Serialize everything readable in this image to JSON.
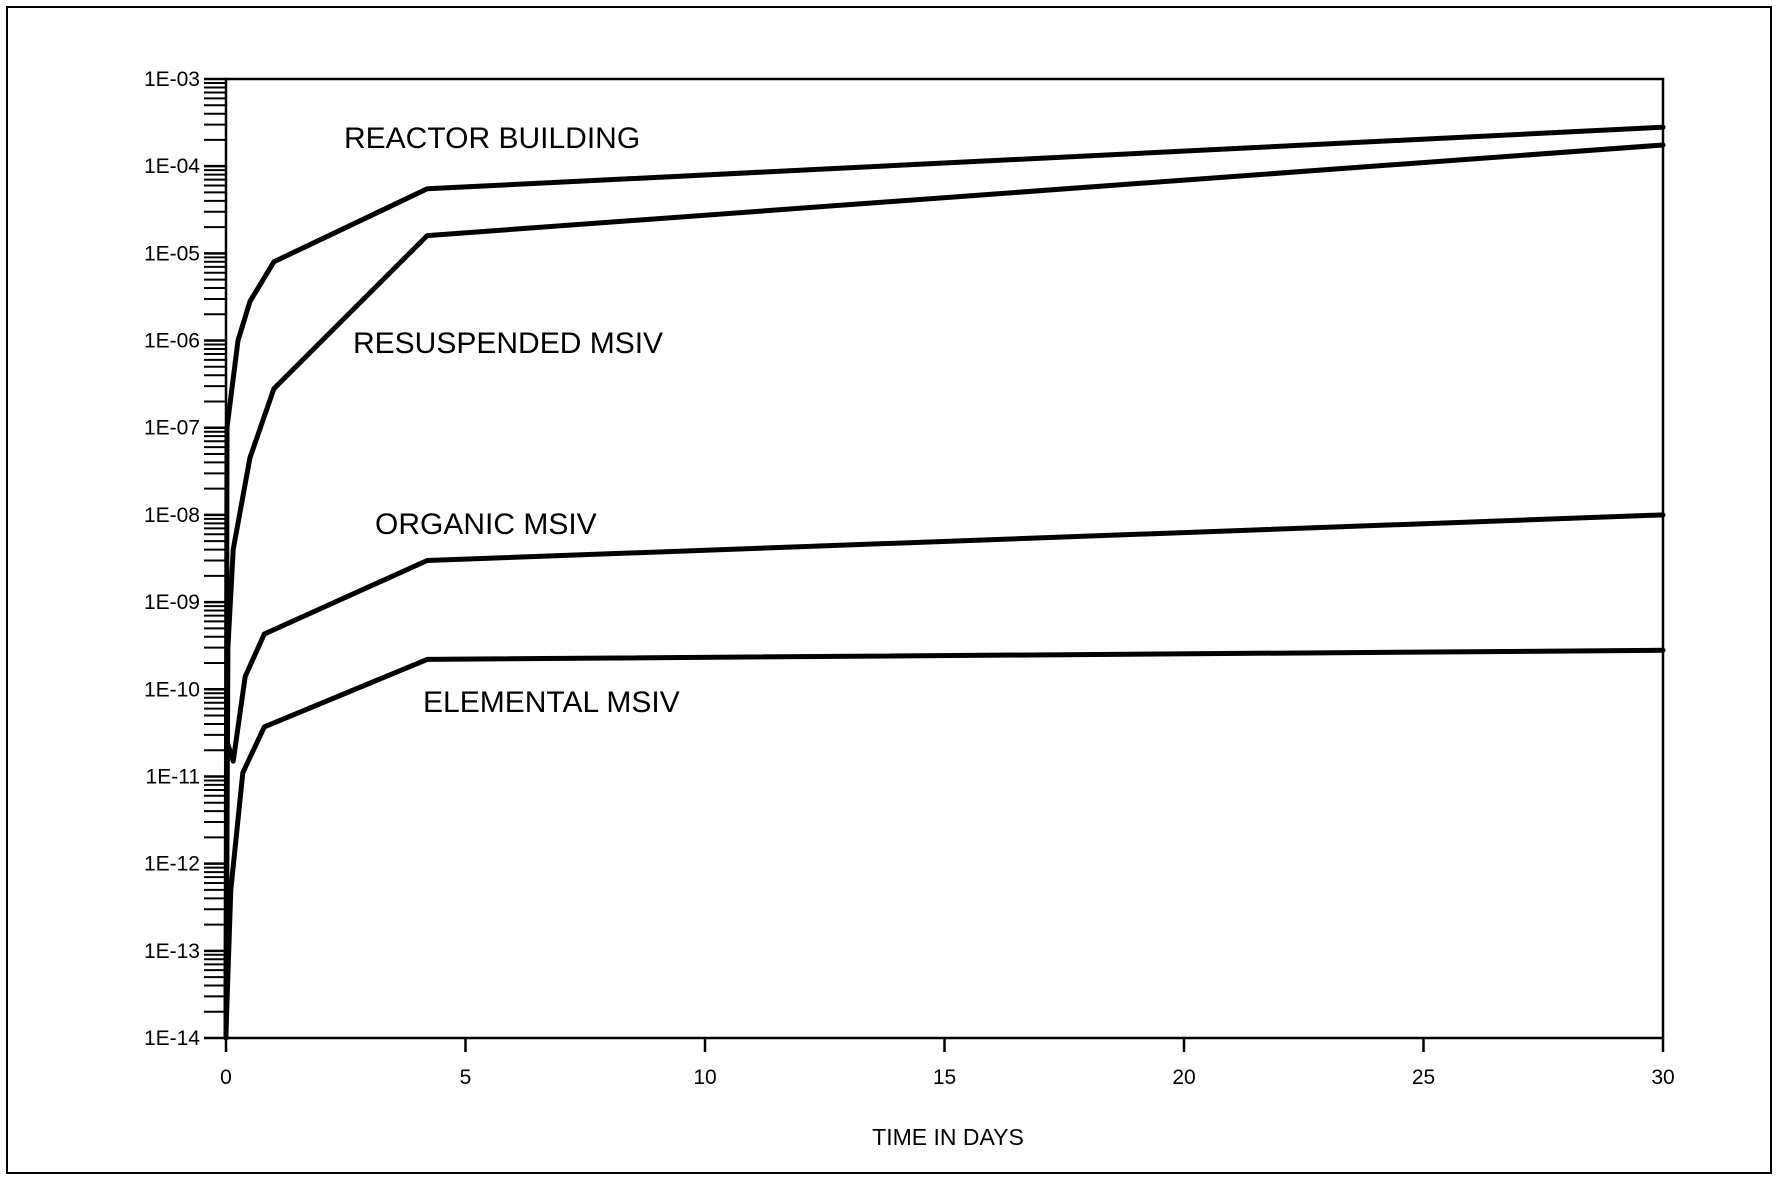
{
  "chart_data": {
    "type": "line",
    "title": "",
    "xlabel": "TIME IN DAYS",
    "ylabel": "",
    "xlim": [
      0,
      30
    ],
    "ylim": [
      1e-14,
      0.001
    ],
    "y_scale": "log",
    "grid": false,
    "x_ticks": [
      0,
      5,
      10,
      15,
      20,
      25,
      30
    ],
    "x_tick_labels": [
      "0",
      "5",
      "10",
      "15",
      "20",
      "25",
      "30"
    ],
    "y_ticks": [
      0.001,
      0.0001,
      1e-05,
      1e-06,
      1e-07,
      1e-08,
      1e-09,
      1e-10,
      1e-11,
      1e-12,
      1e-13,
      1e-14
    ],
    "y_tick_labels": [
      "1E-03",
      "1E-04",
      "1E-05",
      "1E-06",
      "1E-07",
      "1E-08",
      "1E-09",
      "1E-10",
      "1E-11",
      "1E-12",
      "1E-13",
      "1E-14"
    ],
    "series": [
      {
        "name": "REACTOR BUILDING",
        "color": "#000000",
        "x": [
          0,
          0.02,
          0.25,
          0.5,
          1.0,
          4.2,
          30
        ],
        "y": [
          1e-14,
          1e-07,
          1e-06,
          2.8e-06,
          8e-06,
          5.5e-05,
          0.00028
        ]
      },
      {
        "name": "RESUSPENDED MSIV",
        "color": "#000000",
        "x": [
          0,
          0.04,
          0.15,
          0.5,
          1.0,
          4.2,
          30
        ],
        "y": [
          1e-14,
          3e-10,
          4e-09,
          4.5e-08,
          2.8e-07,
          1.6e-05,
          0.000175
        ]
      },
      {
        "name": "ORGANIC MSIV",
        "color": "#000000",
        "x": [
          0,
          0.02,
          0.15,
          0.4,
          0.8,
          4.2,
          30
        ],
        "y": [
          1e-14,
          2.5e-11,
          1.5e-11,
          1.4e-10,
          4.3e-10,
          3e-09,
          1e-08
        ]
      },
      {
        "name": "ELEMENTAL MSIV",
        "color": "#000000",
        "x": [
          0,
          0.1,
          0.35,
          0.8,
          4.2,
          30
        ],
        "y": [
          1.2e-14,
          5e-13,
          1.1e-11,
          3.7e-11,
          2.2e-10,
          2.8e-10
        ]
      }
    ]
  }
}
